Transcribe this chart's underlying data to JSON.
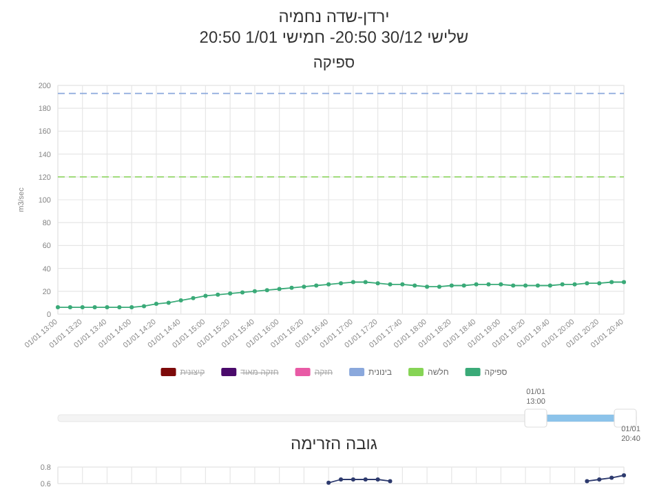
{
  "chart_data": [
    {
      "type": "line",
      "title": "ירדן-שדה נחמיה",
      "subtitle": "שלישי 30/12 20:50- חמישי 1/01 20:50",
      "ylabel": "m3/sec",
      "annotations": [
        "ספיקה",
        "01/01 13:00",
        "01/01 20:40"
      ],
      "categories": [
        "01/01 13:00",
        null,
        "01/01 13:20",
        null,
        "01/01 13:40",
        null,
        "01/01 14:00",
        null,
        "01/01 14:20",
        null,
        "01/01 14:40",
        null,
        "01/01 15:00",
        null,
        "01/01 15:20",
        null,
        "01/01 15:40",
        null,
        "01/01 16:00",
        null,
        "01/01 16:20",
        null,
        "01/01 16:40",
        null,
        "01/01 17:00",
        null,
        "01/01 17:20",
        null,
        "01/01 17:40",
        null,
        "01/01 18:00",
        null,
        "01/01 18:20",
        null,
        "01/01 18:40",
        null,
        "01/01 19:00",
        null,
        "01/01 19:20",
        null,
        "01/01 19:40",
        null,
        "01/01 20:00",
        null,
        "01/01 20:20",
        null,
        "01/01 20:40"
      ],
      "series": [
        {
          "name": "קיצונית",
          "color": "#7d0a0a",
          "values": [
            null,
            null,
            null,
            null,
            null,
            null,
            null,
            null,
            null,
            null,
            null,
            null,
            null,
            null,
            null,
            null,
            null,
            null,
            null,
            null,
            null,
            null,
            null,
            null,
            null,
            null,
            null,
            null,
            null,
            null,
            null,
            null,
            null,
            null,
            null,
            null,
            null,
            null,
            null,
            null,
            null,
            null,
            null,
            null,
            null,
            null,
            null
          ]
        },
        {
          "name": "חזקה מאוד",
          "color": "#4a0a6b",
          "values": [
            null,
            null,
            null,
            null,
            null,
            null,
            null,
            null,
            null,
            null,
            null,
            null,
            null,
            null,
            null,
            null,
            null,
            null,
            null,
            null,
            null,
            null,
            null,
            null,
            null,
            null,
            null,
            null,
            null,
            null,
            null,
            null,
            null,
            null,
            null,
            null,
            null,
            null,
            null,
            null,
            null,
            null,
            null,
            null,
            null,
            null,
            null
          ]
        },
        {
          "name": "חזקה",
          "color": "#e85aa5",
          "values": [
            null,
            null,
            null,
            null,
            null,
            null,
            null,
            null,
            null,
            null,
            null,
            null,
            null,
            null,
            null,
            null,
            null,
            null,
            null,
            null,
            null,
            null,
            null,
            null,
            null,
            null,
            null,
            null,
            null,
            null,
            null,
            null,
            null,
            null,
            null,
            null,
            null,
            null,
            null,
            null,
            null,
            null,
            null,
            null,
            null,
            null,
            null
          ]
        },
        {
          "name": "ספיקה",
          "color": "#3aaa78",
          "values": [
            6,
            6,
            6,
            6,
            6,
            6,
            6,
            7,
            9,
            10,
            12,
            14,
            16,
            17,
            18,
            19,
            20,
            21,
            22,
            23,
            24,
            25,
            26,
            27,
            28,
            28,
            27,
            26,
            26,
            25,
            24,
            24,
            25,
            25,
            26,
            26,
            26,
            25,
            25,
            25,
            25,
            26,
            26,
            27,
            27,
            28,
            28
          ]
        }
      ],
      "ref_lines": [
        {
          "axis": "y",
          "value": 193,
          "label": "בינונית",
          "color": "#8aa8dc",
          "line_style": "dashed"
        },
        {
          "axis": "y",
          "value": 120,
          "label": "חלשה",
          "color": "#86d455",
          "line_style": "dashed"
        }
      ],
      "ylim": [
        0,
        200
      ],
      "yticks": [
        0,
        20,
        40,
        60,
        80,
        100,
        120,
        140,
        160,
        180,
        200
      ],
      "grid": true,
      "legend": "bottom",
      "marker": "circle",
      "line_style": "solid"
    },
    {
      "type": "line",
      "title": "גובה הזרימה",
      "categories": [
        null,
        null,
        null,
        null,
        null,
        null,
        null,
        null,
        null,
        null,
        null,
        null,
        null,
        null,
        null,
        null,
        null,
        null,
        null,
        null,
        null,
        null,
        null,
        null,
        null,
        null,
        null,
        null,
        null,
        null,
        null,
        null,
        null,
        null,
        null,
        null,
        null,
        null,
        null,
        null,
        null,
        null,
        null,
        null,
        null,
        null,
        null
      ],
      "series": [
        {
          "color": "#2d3a6e",
          "values": [
            null,
            null,
            null,
            null,
            null,
            null,
            null,
            null,
            null,
            null,
            null,
            null,
            null,
            null,
            null,
            null,
            null,
            null,
            null,
            null,
            null,
            null,
            0.61,
            0.65,
            0.65,
            0.65,
            0.65,
            0.63,
            null,
            null,
            null,
            null,
            null,
            null,
            null,
            null,
            null,
            null,
            null,
            null,
            null,
            null,
            null,
            0.63,
            0.65,
            0.67,
            0.7
          ]
        }
      ],
      "ylim": [
        0.6,
        0.8
      ],
      "yticks": [
        0.6,
        0.8
      ],
      "tick_labels": "y",
      "grid": true,
      "marker": "circle",
      "line_style": "solid"
    }
  ]
}
